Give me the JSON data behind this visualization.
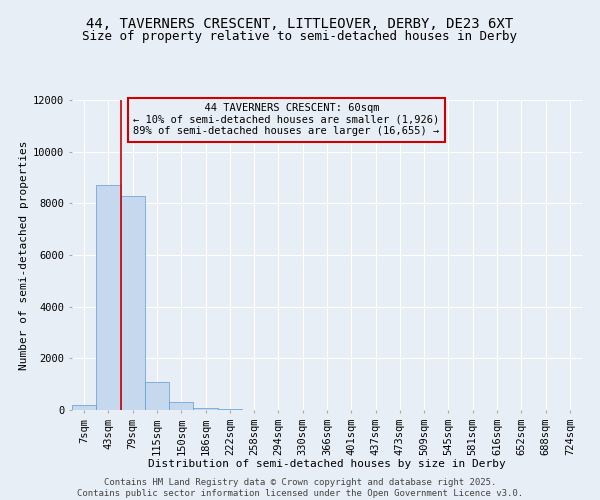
{
  "title_line1": "44, TAVERNERS CRESCENT, LITTLEOVER, DERBY, DE23 6XT",
  "title_line2": "Size of property relative to semi-detached houses in Derby",
  "xlabel": "Distribution of semi-detached houses by size in Derby",
  "ylabel": "Number of semi-detached properties",
  "footer_line1": "Contains HM Land Registry data © Crown copyright and database right 2025.",
  "footer_line2": "Contains public sector information licensed under the Open Government Licence v3.0.",
  "annotation_line1": "44 TAVERNERS CRESCENT: 60sqm",
  "annotation_line2": "← 10% of semi-detached houses are smaller (1,926)",
  "annotation_line3": "89% of semi-detached houses are larger (16,655) →",
  "categories": [
    "7sqm",
    "43sqm",
    "79sqm",
    "115sqm",
    "150sqm",
    "186sqm",
    "222sqm",
    "258sqm",
    "294sqm",
    "330sqm",
    "366sqm",
    "401sqm",
    "437sqm",
    "473sqm",
    "509sqm",
    "545sqm",
    "581sqm",
    "616sqm",
    "652sqm",
    "688sqm",
    "724sqm"
  ],
  "bar_values": [
    200,
    8700,
    8300,
    1100,
    300,
    80,
    30,
    5,
    2,
    1,
    1,
    0,
    0,
    0,
    0,
    0,
    0,
    0,
    0,
    0,
    0
  ],
  "bar_color": "#c5d8ed",
  "bar_edge_color": "#5b9bd5",
  "background_color": "#e8eef5",
  "red_line_color": "#cc0000",
  "annotation_box_edge_color": "#cc0000",
  "ylim": [
    0,
    12000
  ],
  "yticks": [
    0,
    2000,
    4000,
    6000,
    8000,
    10000,
    12000
  ],
  "grid_color": "#ffffff",
  "title_fontsize": 10,
  "subtitle_fontsize": 9,
  "axis_label_fontsize": 8,
  "tick_fontsize": 7.5,
  "annotation_fontsize": 7.5,
  "footer_fontsize": 6.5
}
